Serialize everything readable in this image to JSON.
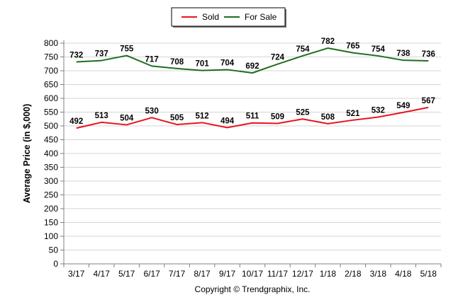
{
  "chart_data": {
    "type": "line",
    "categories": [
      "3/17",
      "4/17",
      "5/17",
      "6/17",
      "7/17",
      "8/17",
      "9/17",
      "10/17",
      "11/17",
      "12/17",
      "1/18",
      "2/18",
      "3/18",
      "4/18",
      "5/18"
    ],
    "series": [
      {
        "name": "Sold",
        "color": "#e8141c",
        "values": [
          492,
          513,
          504,
          530,
          505,
          512,
          494,
          511,
          509,
          525,
          508,
          521,
          532,
          549,
          567
        ]
      },
      {
        "name": "For Sale",
        "color": "#1e6e1e",
        "values": [
          732,
          737,
          755,
          717,
          708,
          701,
          704,
          692,
          724,
          754,
          782,
          765,
          754,
          738,
          736
        ]
      }
    ],
    "title": "",
    "xlabel": "",
    "ylabel": "Average Price (in $,000)",
    "ylim": [
      0,
      800
    ],
    "yticks": [
      0,
      50,
      100,
      150,
      200,
      250,
      300,
      350,
      400,
      450,
      500,
      550,
      600,
      650,
      700,
      750,
      800
    ],
    "grid": true,
    "legend_position": "top-center",
    "credit": "Copyright © Trendgraphix, Inc."
  }
}
